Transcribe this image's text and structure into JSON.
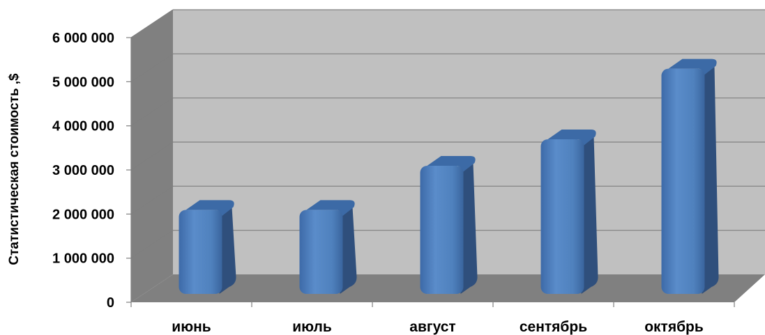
{
  "chart_data": {
    "type": "bar",
    "style": "3d-column",
    "categories": [
      "июнь",
      "июль",
      "август",
      "сентябрь",
      "октябрь"
    ],
    "values": [
      2000000,
      2000000,
      3000000,
      3600000,
      5200000
    ],
    "ylabel": "Статистическая стоимость ,$",
    "xlabel": "",
    "ylim": [
      0,
      6000000
    ],
    "yticks": [
      0,
      1000000,
      2000000,
      3000000,
      4000000,
      5000000,
      6000000
    ],
    "ytick_labels": [
      "0",
      "1 000 000",
      "2 000 000",
      "3 000 000",
      "4 000 000",
      "5 000 000",
      "6 000 000"
    ],
    "grid": true,
    "legend": "none",
    "colors": {
      "bar_front": "#4f81bd",
      "bar_side": "#2f4f7c",
      "bar_top": "#3c6aa6",
      "back_wall": "#c0c0c0",
      "side_wall": "#808080",
      "floor": "#808080",
      "gridline": "#7f7f7f"
    }
  }
}
